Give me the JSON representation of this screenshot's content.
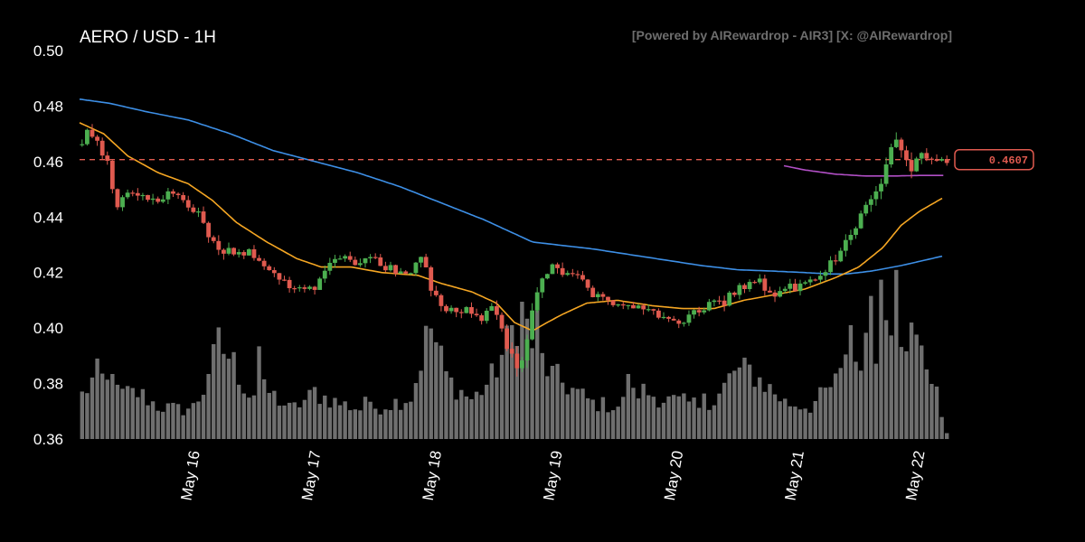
{
  "header": {
    "title": "AERO / USD - 1H",
    "credit": "[Powered by AIRewardrop - AIR3] [X: @AIRewardrop]"
  },
  "price_label": "0.4607",
  "colors": {
    "background": "#000000",
    "up": "#4caf50",
    "down": "#e05a4f",
    "volume": "#6f6f6f",
    "ma_short": "#f5a623",
    "ma_long": "#3d8fe6",
    "ma_recent": "#b14fc5",
    "current_line": "#e05a4f"
  },
  "chart_data": {
    "type": "candlestick",
    "title": "AERO / USD - 1H",
    "y_ticks": [
      "0.50",
      "0.48",
      "0.46",
      "0.44",
      "0.42",
      "0.40",
      "0.38",
      "0.36"
    ],
    "ylim": [
      0.36,
      0.5
    ],
    "x_ticks": [
      "May 16",
      "May 17",
      "May 18",
      "May 19",
      "May 20",
      "May 21",
      "May 22"
    ],
    "x_tick_positions_days": [
      1,
      2,
      3,
      4,
      5,
      6,
      7
    ],
    "x_range_days": [
      0.05,
      7.25
    ],
    "current_price": 0.4607,
    "close_keyframes": [
      [
        0.05,
        0.466
      ],
      [
        0.1,
        0.47
      ],
      [
        0.18,
        0.468
      ],
      [
        0.25,
        0.462
      ],
      [
        0.3,
        0.459
      ],
      [
        0.33,
        0.448
      ],
      [
        0.36,
        0.445
      ],
      [
        0.42,
        0.448
      ],
      [
        0.5,
        0.449
      ],
      [
        0.6,
        0.447
      ],
      [
        0.7,
        0.447
      ],
      [
        0.8,
        0.448
      ],
      [
        0.9,
        0.446
      ],
      [
        0.98,
        0.444
      ],
      [
        1.05,
        0.44
      ],
      [
        1.12,
        0.434
      ],
      [
        1.17,
        0.429
      ],
      [
        1.22,
        0.425
      ],
      [
        1.3,
        0.428
      ],
      [
        1.4,
        0.428
      ],
      [
        1.5,
        0.426
      ],
      [
        1.58,
        0.421
      ],
      [
        1.65,
        0.42
      ],
      [
        1.72,
        0.417
      ],
      [
        1.8,
        0.415
      ],
      [
        1.88,
        0.414
      ],
      [
        1.95,
        0.414
      ],
      [
        2.02,
        0.416
      ],
      [
        2.08,
        0.422
      ],
      [
        2.15,
        0.424
      ],
      [
        2.25,
        0.425
      ],
      [
        2.35,
        0.424
      ],
      [
        2.45,
        0.426
      ],
      [
        2.55,
        0.423
      ],
      [
        2.65,
        0.421
      ],
      [
        2.72,
        0.42
      ],
      [
        2.8,
        0.421
      ],
      [
        2.88,
        0.424
      ],
      [
        2.93,
        0.42
      ],
      [
        2.98,
        0.412
      ],
      [
        3.03,
        0.408
      ],
      [
        3.1,
        0.408
      ],
      [
        3.2,
        0.407
      ],
      [
        3.3,
        0.406
      ],
      [
        3.38,
        0.404
      ],
      [
        3.45,
        0.408
      ],
      [
        3.5,
        0.405
      ],
      [
        3.56,
        0.396
      ],
      [
        3.62,
        0.392
      ],
      [
        3.67,
        0.386
      ],
      [
        3.71,
        0.388
      ],
      [
        3.76,
        0.395
      ],
      [
        3.82,
        0.41
      ],
      [
        3.88,
        0.418
      ],
      [
        3.95,
        0.422
      ],
      [
        4.03,
        0.42
      ],
      [
        4.1,
        0.421
      ],
      [
        4.18,
        0.418
      ],
      [
        4.25,
        0.414
      ],
      [
        4.32,
        0.411
      ],
      [
        4.4,
        0.41
      ],
      [
        4.5,
        0.409
      ],
      [
        4.58,
        0.408
      ],
      [
        4.65,
        0.409
      ],
      [
        4.72,
        0.408
      ],
      [
        4.8,
        0.405
      ],
      [
        4.88,
        0.403
      ],
      [
        4.95,
        0.403
      ],
      [
        5.02,
        0.402
      ],
      [
        5.1,
        0.404
      ],
      [
        5.18,
        0.407
      ],
      [
        5.25,
        0.408
      ],
      [
        5.32,
        0.409
      ],
      [
        5.4,
        0.41
      ],
      [
        5.45,
        0.413
      ],
      [
        5.52,
        0.414
      ],
      [
        5.58,
        0.416
      ],
      [
        5.65,
        0.417
      ],
      [
        5.72,
        0.415
      ],
      [
        5.78,
        0.412
      ],
      [
        5.85,
        0.412
      ],
      [
        5.9,
        0.414
      ],
      [
        5.98,
        0.415
      ],
      [
        6.05,
        0.416
      ],
      [
        6.12,
        0.416
      ],
      [
        6.18,
        0.418
      ],
      [
        6.25,
        0.422
      ],
      [
        6.32,
        0.426
      ],
      [
        6.38,
        0.43
      ],
      [
        6.45,
        0.436
      ],
      [
        6.52,
        0.441
      ],
      [
        6.58,
        0.446
      ],
      [
        6.65,
        0.452
      ],
      [
        6.72,
        0.456
      ],
      [
        6.76,
        0.465
      ],
      [
        6.8,
        0.47
      ],
      [
        6.85,
        0.462
      ],
      [
        6.9,
        0.459
      ],
      [
        6.94,
        0.456
      ],
      [
        6.98,
        0.462
      ],
      [
        7.02,
        0.465
      ],
      [
        7.06,
        0.462
      ],
      [
        7.1,
        0.46
      ],
      [
        7.15,
        0.46
      ],
      [
        7.2,
        0.4607
      ]
    ],
    "ma_short_keyframes": [
      [
        0.05,
        0.474
      ],
      [
        0.25,
        0.47
      ],
      [
        0.45,
        0.462
      ],
      [
        0.7,
        0.456
      ],
      [
        0.95,
        0.452
      ],
      [
        1.15,
        0.446
      ],
      [
        1.35,
        0.438
      ],
      [
        1.6,
        0.431
      ],
      [
        1.85,
        0.425
      ],
      [
        2.05,
        0.422
      ],
      [
        2.3,
        0.422
      ],
      [
        2.55,
        0.42
      ],
      [
        2.85,
        0.419
      ],
      [
        3.05,
        0.416
      ],
      [
        3.3,
        0.413
      ],
      [
        3.5,
        0.409
      ],
      [
        3.65,
        0.402
      ],
      [
        3.8,
        0.399
      ],
      [
        3.92,
        0.402
      ],
      [
        4.05,
        0.405
      ],
      [
        4.25,
        0.409
      ],
      [
        4.5,
        0.41
      ],
      [
        4.8,
        0.408
      ],
      [
        5.05,
        0.407
      ],
      [
        5.3,
        0.407
      ],
      [
        5.55,
        0.41
      ],
      [
        5.8,
        0.412
      ],
      [
        6.05,
        0.414
      ],
      [
        6.3,
        0.418
      ],
      [
        6.5,
        0.422
      ],
      [
        6.7,
        0.429
      ],
      [
        6.85,
        0.437
      ],
      [
        7.0,
        0.442
      ],
      [
        7.12,
        0.445
      ],
      [
        7.2,
        0.447
      ]
    ],
    "ma_long_keyframes": [
      [
        0.05,
        0.4825
      ],
      [
        0.3,
        0.481
      ],
      [
        0.6,
        0.478
      ],
      [
        0.95,
        0.475
      ],
      [
        1.3,
        0.47
      ],
      [
        1.65,
        0.464
      ],
      [
        2.0,
        0.46
      ],
      [
        2.35,
        0.456
      ],
      [
        2.7,
        0.451
      ],
      [
        3.05,
        0.445
      ],
      [
        3.4,
        0.439
      ],
      [
        3.65,
        0.434
      ],
      [
        3.8,
        0.431
      ],
      [
        4.0,
        0.43
      ],
      [
        4.3,
        0.4285
      ],
      [
        4.6,
        0.4265
      ],
      [
        4.9,
        0.4245
      ],
      [
        5.2,
        0.4225
      ],
      [
        5.5,
        0.421
      ],
      [
        5.8,
        0.4205
      ],
      [
        6.05,
        0.42
      ],
      [
        6.25,
        0.4195
      ],
      [
        6.4,
        0.4195
      ],
      [
        6.6,
        0.4205
      ],
      [
        6.85,
        0.4225
      ],
      [
        7.05,
        0.4245
      ],
      [
        7.2,
        0.426
      ]
    ],
    "ma_recent_keyframes": [
      [
        5.88,
        0.4585
      ],
      [
        6.05,
        0.457
      ],
      [
        6.3,
        0.4555
      ],
      [
        6.55,
        0.4548
      ],
      [
        6.8,
        0.4548
      ],
      [
        7.0,
        0.455
      ],
      [
        7.2,
        0.455
      ]
    ],
    "volume_keyframes": [
      [
        0.05,
        0.25
      ],
      [
        0.2,
        0.4
      ],
      [
        0.35,
        0.28
      ],
      [
        0.55,
        0.28
      ],
      [
        0.7,
        0.2
      ],
      [
        0.9,
        0.18
      ],
      [
        1.0,
        0.2
      ],
      [
        1.1,
        0.34
      ],
      [
        1.2,
        0.58
      ],
      [
        1.3,
        0.5
      ],
      [
        1.45,
        0.28
      ],
      [
        1.6,
        0.3
      ],
      [
        1.8,
        0.18
      ],
      [
        2.0,
        0.28
      ],
      [
        2.2,
        0.22
      ],
      [
        2.4,
        0.18
      ],
      [
        2.55,
        0.2
      ],
      [
        2.8,
        0.26
      ],
      [
        2.95,
        0.7
      ],
      [
        3.1,
        0.36
      ],
      [
        3.3,
        0.24
      ],
      [
        3.45,
        0.36
      ],
      [
        3.6,
        0.6
      ],
      [
        3.7,
        0.82
      ],
      [
        3.8,
        0.58
      ],
      [
        3.95,
        0.4
      ],
      [
        4.1,
        0.32
      ],
      [
        4.3,
        0.22
      ],
      [
        4.5,
        0.2
      ],
      [
        4.7,
        0.3
      ],
      [
        4.9,
        0.24
      ],
      [
        5.1,
        0.22
      ],
      [
        5.3,
        0.2
      ],
      [
        5.45,
        0.4
      ],
      [
        5.6,
        0.42
      ],
      [
        5.75,
        0.32
      ],
      [
        5.9,
        0.22
      ],
      [
        6.1,
        0.2
      ],
      [
        6.3,
        0.34
      ],
      [
        6.5,
        0.5
      ],
      [
        6.65,
        0.62
      ],
      [
        6.75,
        0.82
      ],
      [
        6.85,
        0.7
      ],
      [
        6.95,
        0.62
      ],
      [
        7.05,
        0.48
      ],
      [
        7.15,
        0.32
      ],
      [
        7.2,
        0.04
      ]
    ],
    "volume_spikes": [
      [
        0.32,
        0.4
      ],
      [
        1.12,
        0.4
      ],
      [
        1.55,
        0.57
      ],
      [
        2.01,
        0.32
      ],
      [
        2.4,
        0.26
      ],
      [
        2.88,
        0.42
      ],
      [
        2.94,
        0.68
      ],
      [
        3.56,
        0.44
      ],
      [
        3.6,
        0.66
      ],
      [
        3.85,
        0.79
      ],
      [
        4.6,
        0.4
      ],
      [
        5.23,
        0.28
      ],
      [
        5.48,
        0.42
      ],
      [
        5.78,
        0.28
      ],
      [
        6.38,
        0.52
      ],
      [
        6.45,
        0.7
      ],
      [
        6.6,
        0.88
      ],
      [
        6.7,
        0.98
      ],
      [
        6.8,
        1.04
      ],
      [
        6.92,
        0.68
      ],
      [
        7.03,
        0.46
      ]
    ],
    "grid": false,
    "legend": "none"
  }
}
